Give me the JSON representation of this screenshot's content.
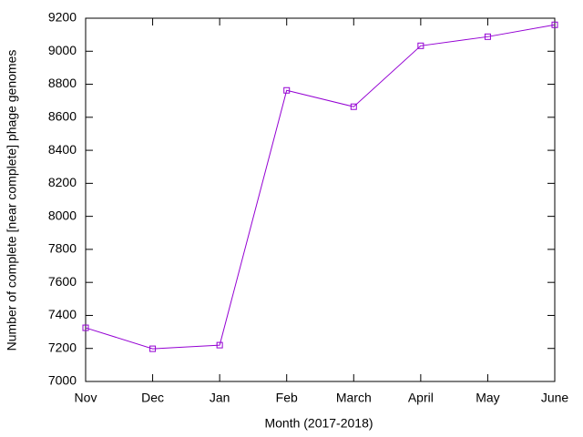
{
  "chart_data": {
    "type": "line",
    "x_label": "Month (2017-2018)",
    "y_label": "Number of complete [near complete] phage  genomes",
    "categories": [
      "Nov",
      "Dec",
      "Jan",
      "Feb",
      "March",
      "April",
      "May",
      "June"
    ],
    "series": [
      {
        "color": "#9400d3",
        "values": [
          7325,
          7198,
          7220,
          8763,
          8664,
          9033,
          9088,
          9160
        ]
      }
    ],
    "ylim": [
      7000,
      9200
    ],
    "yticks": [
      7000,
      7200,
      7400,
      7600,
      7800,
      8000,
      8200,
      8400,
      8600,
      8800,
      9000,
      9200
    ],
    "marker": "square"
  }
}
